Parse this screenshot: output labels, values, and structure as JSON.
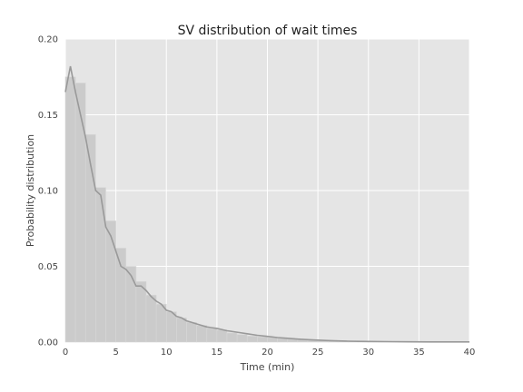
{
  "chart_data": {
    "type": "bar",
    "title": "SV distribution of wait times",
    "xlabel": "Time (min)",
    "ylabel": "Probability distribution",
    "xlim": [
      0,
      40
    ],
    "ylim": [
      0,
      0.2
    ],
    "xticks": [
      "0",
      "5",
      "10",
      "15",
      "20",
      "25",
      "30",
      "35",
      "40"
    ],
    "yticks": [
      "0.00",
      "0.05",
      "0.10",
      "0.15",
      "0.20"
    ],
    "grid": true,
    "colors": {
      "plot_background": "#e5e5e5",
      "grid": "#ffffff",
      "histogram_fill": "#cbcbcb",
      "histogram_edge": "#d8d8d8",
      "line": "#999999"
    },
    "histogram": {
      "bin_width": 1,
      "bins_start": [
        0,
        1,
        2,
        3,
        4,
        5,
        6,
        7,
        8,
        9,
        10,
        11,
        12,
        13,
        14,
        15,
        16,
        17,
        18,
        19,
        20,
        21,
        22,
        23,
        24,
        25,
        26,
        27,
        28,
        29,
        30,
        31,
        32,
        33,
        34,
        35,
        36,
        37,
        38,
        39
      ],
      "values": [
        0.175,
        0.171,
        0.137,
        0.102,
        0.08,
        0.062,
        0.05,
        0.04,
        0.031,
        0.025,
        0.02,
        0.016,
        0.013,
        0.011,
        0.009,
        0.008,
        0.006,
        0.005,
        0.004,
        0.0035,
        0.003,
        0.0025,
        0.002,
        0.0017,
        0.0014,
        0.0012,
        0.001,
        0.0008,
        0.0007,
        0.0006,
        0.0005,
        0.0004,
        0.0003,
        0.0003,
        0.0002,
        0.0002,
        0.0002,
        0.0001,
        0.0001,
        0.0001
      ]
    },
    "line": {
      "x": [
        0,
        0.5,
        1,
        1.5,
        2,
        2.5,
        3,
        3.5,
        4,
        4.5,
        5,
        5.5,
        6,
        6.5,
        7,
        7.5,
        8,
        8.5,
        9,
        9.5,
        10,
        10.5,
        11,
        11.5,
        12,
        12.5,
        13,
        13.5,
        14,
        14.5,
        15,
        16,
        17,
        18,
        19,
        20,
        21,
        22,
        23,
        24,
        25,
        26,
        27,
        28,
        29,
        30,
        32,
        34,
        36,
        38,
        40
      ],
      "y": [
        0.165,
        0.182,
        0.165,
        0.15,
        0.135,
        0.117,
        0.1,
        0.097,
        0.076,
        0.07,
        0.06,
        0.05,
        0.048,
        0.044,
        0.037,
        0.037,
        0.034,
        0.03,
        0.027,
        0.025,
        0.021,
        0.02,
        0.017,
        0.016,
        0.014,
        0.013,
        0.012,
        0.011,
        0.01,
        0.0095,
        0.009,
        0.0075,
        0.0065,
        0.0055,
        0.0045,
        0.0038,
        0.003,
        0.0025,
        0.002,
        0.0016,
        0.0013,
        0.001,
        0.0008,
        0.0006,
        0.0005,
        0.0004,
        0.0003,
        0.0002,
        0.0001,
        0.0001,
        0.0001
      ]
    }
  }
}
